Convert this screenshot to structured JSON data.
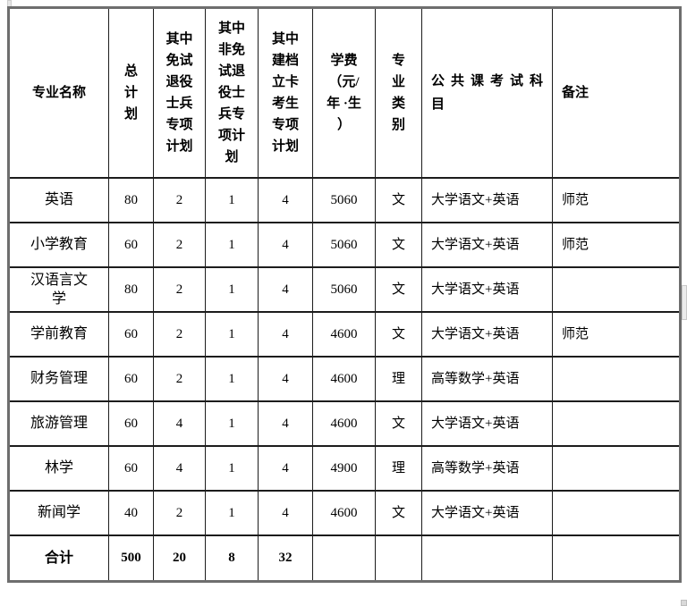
{
  "table": {
    "columns": [
      {
        "label": "专业名称"
      },
      {
        "label": "总\n计\n划"
      },
      {
        "label": "其中\n免试\n退役\n士兵\n专项\n计划"
      },
      {
        "label": "其中\n非免\n试退\n役士\n兵专\n项计\n划"
      },
      {
        "label": "其中\n建档\n立卡\n考生\n专项\n计划"
      },
      {
        "label": "学费\n（元/\n年 ·生\n）"
      },
      {
        "label": "专\n业\n类\n别"
      },
      {
        "label": "公共课考试科\n目"
      },
      {
        "label": "备注"
      }
    ],
    "rows": [
      [
        "英语",
        "80",
        "2",
        "1",
        "4",
        "5060",
        "文",
        "大学语文+英语",
        "师范"
      ],
      [
        "小学教育",
        "60",
        "2",
        "1",
        "4",
        "5060",
        "文",
        "大学语文+英语",
        "师范"
      ],
      [
        "汉语言文\n学",
        "80",
        "2",
        "1",
        "4",
        "5060",
        "文",
        "大学语文+英语",
        ""
      ],
      [
        "学前教育",
        "60",
        "2",
        "1",
        "4",
        "4600",
        "文",
        "大学语文+英语",
        "师范"
      ],
      [
        "财务管理",
        "60",
        "2",
        "1",
        "4",
        "4600",
        "理",
        "高等数学+英语",
        ""
      ],
      [
        "旅游管理",
        "60",
        "4",
        "1",
        "4",
        "4600",
        "文",
        "大学语文+英语",
        ""
      ],
      [
        "林学",
        "60",
        "4",
        "1",
        "4",
        "4900",
        "理",
        "高等数学+英语",
        ""
      ],
      [
        "新闻学",
        "40",
        "2",
        "1",
        "4",
        "4600",
        "文",
        "大学语文+英语",
        ""
      ]
    ],
    "total_row": [
      "合计",
      "500",
      "20",
      "8",
      "32",
      "",
      "",
      "",
      ""
    ],
    "colors": {
      "outer_border": "#6e6e6e",
      "inner_border": "#1c1c1c",
      "text": "#000000",
      "background": "#ffffff"
    }
  }
}
